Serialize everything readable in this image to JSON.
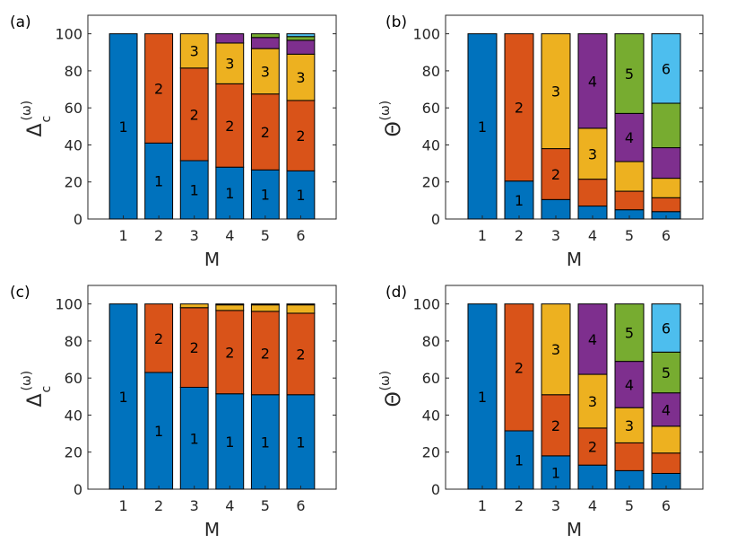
{
  "colors": [
    "#0072BD",
    "#D95319",
    "#EDB120",
    "#7E2F8E",
    "#77AC30",
    "#4DBEEE"
  ],
  "chart_data": [
    {
      "panel": "(a)",
      "type": "stacked-bar",
      "xlabel": "M",
      "ylabel": "Δc(ω)",
      "ylabel_main": "Δ",
      "ylabel_sub": "c",
      "ylabel_sup": "(ω)",
      "categories": [
        "1",
        "2",
        "3",
        "4",
        "5",
        "6"
      ],
      "ylim": [
        0,
        110
      ],
      "yticks": [
        "0",
        "20",
        "40",
        "60",
        "80",
        "100"
      ],
      "stacks": [
        [
          100
        ],
        [
          41,
          59
        ],
        [
          31.5,
          50,
          18.5
        ],
        [
          28,
          45,
          22,
          5
        ],
        [
          26.5,
          41,
          24.5,
          6,
          2
        ],
        [
          26,
          38,
          25,
          7.5,
          2,
          1.5
        ]
      ],
      "segment_labels": [
        [
          "1"
        ],
        [
          "1",
          "2"
        ],
        [
          "1",
          "2",
          "3"
        ],
        [
          "1",
          "2",
          "3",
          ""
        ],
        [
          "1",
          "2",
          "3",
          "",
          ""
        ],
        [
          "1",
          "2",
          "3",
          "",
          "",
          ""
        ]
      ]
    },
    {
      "panel": "(b)",
      "type": "stacked-bar",
      "xlabel": "M",
      "ylabel": "Θ(ω)",
      "ylabel_main": "Θ",
      "ylabel_sub": "",
      "ylabel_sup": "(ω)",
      "categories": [
        "1",
        "2",
        "3",
        "4",
        "5",
        "6"
      ],
      "ylim": [
        0,
        110
      ],
      "yticks": [
        "0",
        "20",
        "40",
        "60",
        "80",
        "100"
      ],
      "stacks": [
        [
          100
        ],
        [
          20.5,
          79.5
        ],
        [
          10.5,
          27.5,
          62
        ],
        [
          7,
          14.5,
          27.5,
          51
        ],
        [
          5,
          10,
          16,
          26,
          43
        ],
        [
          4,
          7.5,
          10.5,
          16.5,
          24,
          37.5
        ]
      ],
      "segment_labels": [
        [
          "1"
        ],
        [
          "1",
          "2"
        ],
        [
          "",
          "2",
          "3"
        ],
        [
          "",
          "",
          "3",
          "4"
        ],
        [
          "",
          "",
          "",
          "4",
          "5"
        ],
        [
          "",
          "",
          "",
          "",
          "",
          "6"
        ]
      ]
    },
    {
      "panel": "(c)",
      "type": "stacked-bar",
      "xlabel": "M",
      "ylabel": "Δc(ω)",
      "ylabel_main": "Δ",
      "ylabel_sub": "c",
      "ylabel_sup": "(ω)",
      "categories": [
        "1",
        "2",
        "3",
        "4",
        "5",
        "6"
      ],
      "ylim": [
        0,
        110
      ],
      "yticks": [
        "0",
        "20",
        "40",
        "60",
        "80",
        "100"
      ],
      "stacks": [
        [
          100
        ],
        [
          63,
          37
        ],
        [
          55,
          43,
          2
        ],
        [
          51.5,
          45,
          3,
          0.5
        ],
        [
          51,
          45,
          3.5,
          0.5
        ],
        [
          51,
          44,
          4.5,
          0.5
        ]
      ],
      "segment_labels": [
        [
          "1"
        ],
        [
          "1",
          "2"
        ],
        [
          "1",
          "2",
          ""
        ],
        [
          "1",
          "2",
          "",
          ""
        ],
        [
          "1",
          "2",
          "",
          ""
        ],
        [
          "1",
          "2",
          "",
          ""
        ]
      ]
    },
    {
      "panel": "(d)",
      "type": "stacked-bar",
      "xlabel": "M",
      "ylabel": "Θ(ω)",
      "ylabel_main": "Θ",
      "ylabel_sub": "",
      "ylabel_sup": "(ω)",
      "categories": [
        "1",
        "2",
        "3",
        "4",
        "5",
        "6"
      ],
      "ylim": [
        0,
        110
      ],
      "yticks": [
        "0",
        "20",
        "40",
        "60",
        "80",
        "100"
      ],
      "stacks": [
        [
          100
        ],
        [
          31.5,
          68.5
        ],
        [
          18,
          33,
          49
        ],
        [
          13,
          20,
          29,
          38
        ],
        [
          10,
          15,
          19,
          25,
          31
        ],
        [
          8.5,
          11,
          14.5,
          18,
          22,
          26
        ]
      ],
      "segment_labels": [
        [
          "1"
        ],
        [
          "1",
          "2"
        ],
        [
          "1",
          "2",
          "3"
        ],
        [
          "",
          "2",
          "3",
          "4"
        ],
        [
          "",
          "",
          "3",
          "4",
          "5"
        ],
        [
          "",
          "",
          "",
          "4",
          "5",
          "6"
        ]
      ]
    }
  ]
}
